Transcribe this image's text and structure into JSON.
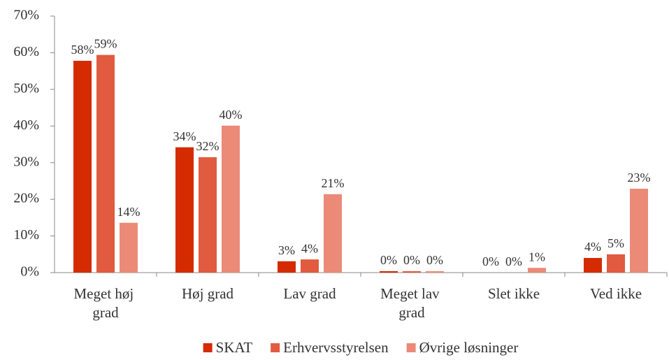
{
  "chart_data": {
    "type": "bar",
    "categories": [
      "Meget høj grad",
      "Høj grad",
      "Lav grad",
      "Meget lav grad",
      "Slet ikke",
      "Ved ikke"
    ],
    "series": [
      {
        "name": "SKAT",
        "color": "#d42b00",
        "values": [
          57.8,
          34.2,
          3.1,
          0.4,
          0,
          4.0
        ],
        "value_labels": [
          "58%",
          "34%",
          "3%",
          "0%",
          "0%",
          "4%"
        ]
      },
      {
        "name": "Erhvervsstyrelsen",
        "color": "#e05b3f",
        "values": [
          59.4,
          31.5,
          3.6,
          0.4,
          0,
          5.0
        ],
        "value_labels": [
          "59%",
          "32%",
          "4%",
          "0%",
          "0%",
          "5%"
        ]
      },
      {
        "name": "Øvrige løsninger",
        "color": "#eb8a77",
        "values": [
          13.6,
          40.1,
          21.4,
          0.4,
          1.3,
          22.9
        ],
        "value_labels": [
          "14%",
          "40%",
          "21%",
          "0%",
          "1%",
          "23%"
        ]
      }
    ],
    "ylim": [
      0,
      70
    ],
    "yticks": [
      {
        "value": 0,
        "label": "0%"
      },
      {
        "value": 10,
        "label": "10%"
      },
      {
        "value": 20,
        "label": "20%"
      },
      {
        "value": 30,
        "label": "30%"
      },
      {
        "value": 40,
        "label": "40%"
      },
      {
        "value": 50,
        "label": "50%"
      },
      {
        "value": 60,
        "label": "60%"
      },
      {
        "value": 70,
        "label": "70%"
      }
    ],
    "legend": "bottom"
  }
}
